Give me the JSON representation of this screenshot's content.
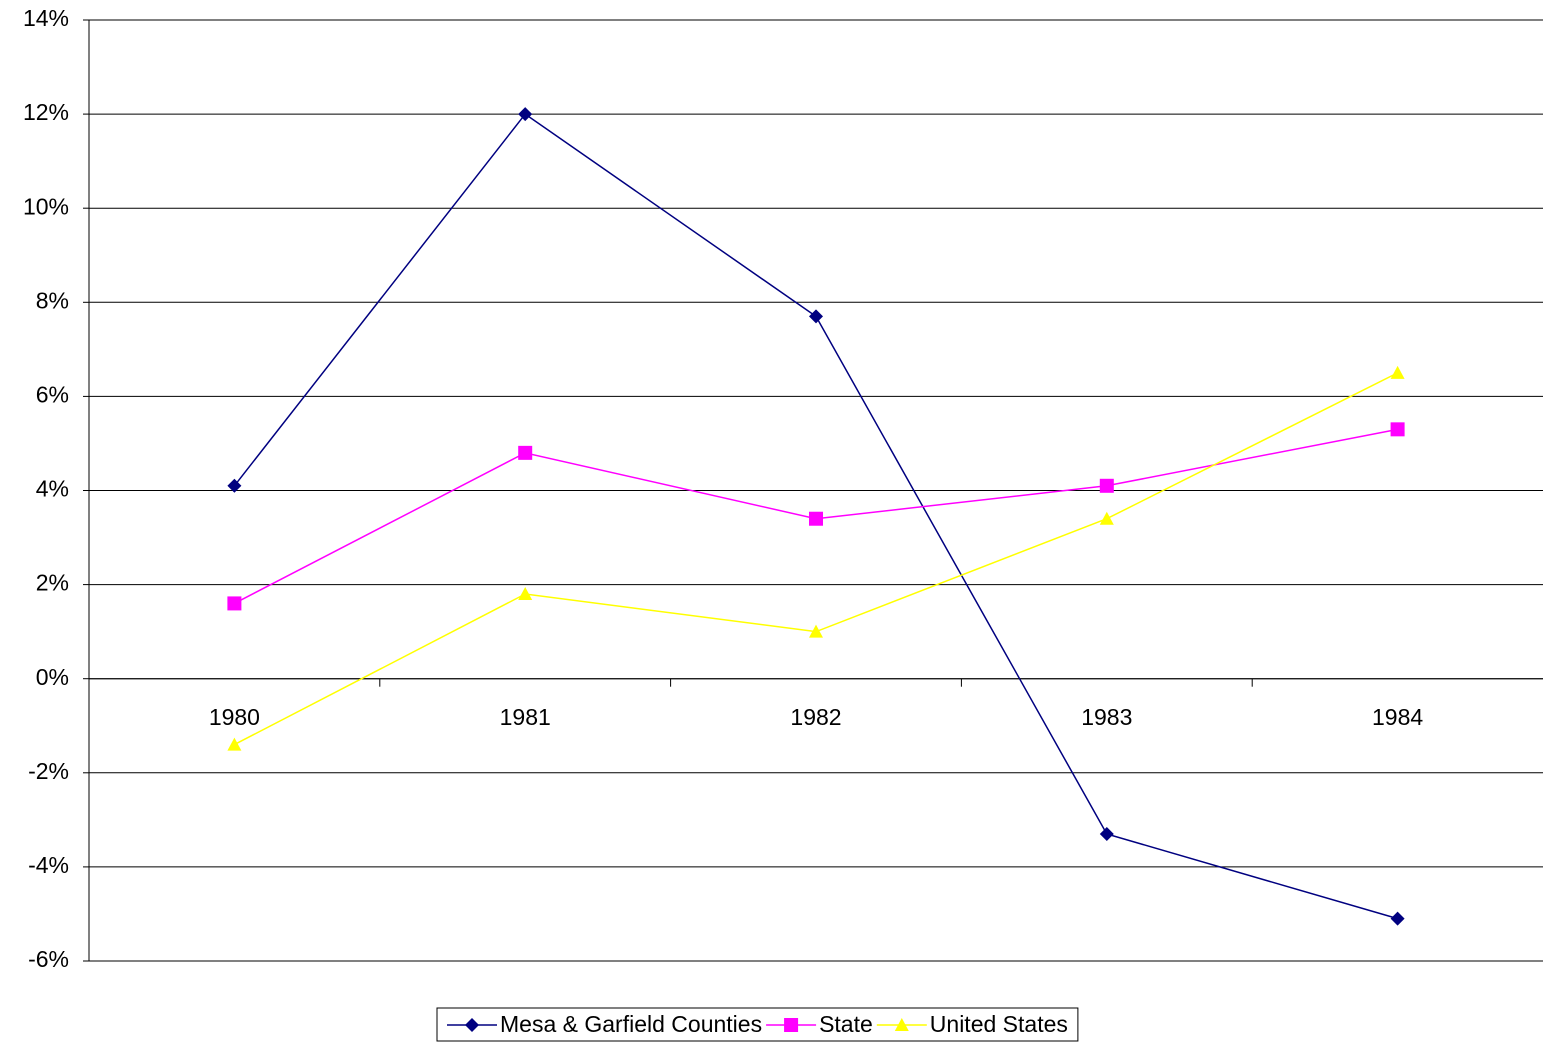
{
  "chart_data": {
    "type": "line",
    "categories": [
      "1980",
      "1981",
      "1982",
      "1983",
      "1984"
    ],
    "series": [
      {
        "name": "Mesa & Garfield Counties",
        "color": "#000080",
        "marker": "diamond",
        "values": [
          4.1,
          12.0,
          7.7,
          -3.3,
          -5.1
        ]
      },
      {
        "name": "State",
        "color": "#ff00ff",
        "marker": "square",
        "values": [
          1.6,
          4.8,
          3.4,
          4.1,
          5.3
        ]
      },
      {
        "name": "United States",
        "color": "#ffff00",
        "marker": "triangle",
        "values": [
          -1.4,
          1.8,
          1.0,
          3.4,
          6.5
        ]
      }
    ],
    "ylim": [
      -6,
      14
    ],
    "yticks": [
      {
        "value": -6,
        "label": "-6%"
      },
      {
        "value": -4,
        "label": "-4%"
      },
      {
        "value": -2,
        "label": "-2%"
      },
      {
        "value": 0,
        "label": "0%"
      },
      {
        "value": 2,
        "label": "2%"
      },
      {
        "value": 4,
        "label": "4%"
      },
      {
        "value": 6,
        "label": "6%"
      },
      {
        "value": 8,
        "label": "8%"
      },
      {
        "value": 10,
        "label": "10%"
      },
      {
        "value": 12,
        "label": "12%"
      },
      {
        "value": 14,
        "label": "14%"
      }
    ],
    "grid": true,
    "legend": "bottom"
  }
}
